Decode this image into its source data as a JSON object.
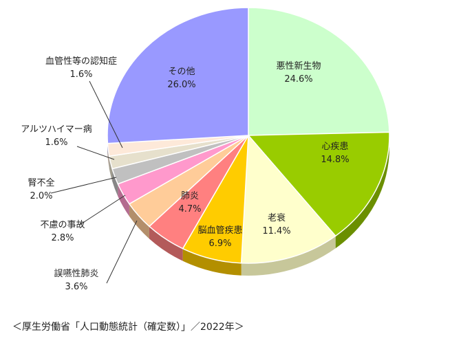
{
  "chart_data": {
    "type": "pie",
    "style": "3d",
    "slices": [
      {
        "name": "悪性新生物",
        "value": 24.6,
        "label": "24.6%",
        "color": "#ccffcc",
        "side": "#8fbf8f"
      },
      {
        "name": "心疾患",
        "value": 14.8,
        "label": "14.8%",
        "color": "#99cc00",
        "side": "#6b8f00"
      },
      {
        "name": "老衰",
        "value": 11.4,
        "label": "11.4%",
        "color": "#ffffcc",
        "side": "#c7c79a"
      },
      {
        "name": "脳血管疾患",
        "value": 6.9,
        "label": "6.9%",
        "color": "#ffcc00",
        "side": "#b38f00"
      },
      {
        "name": "肺炎",
        "value": 4.7,
        "label": "4.7%",
        "color": "#ff8080",
        "side": "#b35a5a"
      },
      {
        "name": "誤嚥性肺炎",
        "value": 3.6,
        "label": "3.6%",
        "color": "#ffcc99",
        "side": "#b38f6b"
      },
      {
        "name": "不慮の事故",
        "value": 2.8,
        "label": "2.8%",
        "color": "#ff99cc",
        "side": "#b36b8f"
      },
      {
        "name": "腎不全",
        "value": 2.0,
        "label": "2.0%",
        "color": "#c0c0c0",
        "side": "#878787"
      },
      {
        "name": "アルツハイマー病",
        "value": 1.6,
        "label": "1.6%",
        "color": "#e6e0cc",
        "side": "#a19d8f"
      },
      {
        "name": "血管性等の認知症",
        "value": 1.6,
        "label": "1.6%",
        "color": "#fde9d9",
        "side": "#b1a398"
      },
      {
        "name": "その他",
        "value": 26.0,
        "label": "26.0%",
        "color": "#9999ff",
        "side": "#6b6bb3"
      }
    ]
  },
  "source": "＜厚生労働省「人口動態統計（確定数）」／2022年＞"
}
